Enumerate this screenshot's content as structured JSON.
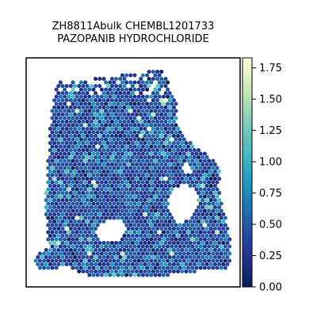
{
  "chart_data": {
    "type": "heatmap",
    "title": "ZH8811Abulk CHEMBL1201733\nPAZOPANIB HYDROCHLORIDE",
    "title_lines": [
      "ZH8811Abulk CHEMBL1201733",
      "PAZOPANIB HYDROCHLORIDE"
    ],
    "xlabel": "",
    "ylabel": "",
    "grid": false,
    "colormap": "YlGnBu_r",
    "colorbar": {
      "vmin": 0.0,
      "vmax": 1.83,
      "ticks": [
        0.0,
        0.25,
        0.5,
        0.75,
        1.0,
        1.25,
        1.5,
        1.75
      ],
      "tick_labels": [
        "0.00",
        "0.25",
        "0.50",
        "0.75",
        "1.00",
        "1.25",
        "1.50",
        "1.75"
      ],
      "colors": [
        "#081d58",
        "#253494",
        "#225ea8",
        "#1d91c0",
        "#41b6c4",
        "#7fcdbb",
        "#c7e9b4",
        "#ffffd9"
      ]
    },
    "value_distribution": "mostly 0.2–0.6 with sparse spots up to ~1.8",
    "spatial_hexbin_spots": true
  }
}
